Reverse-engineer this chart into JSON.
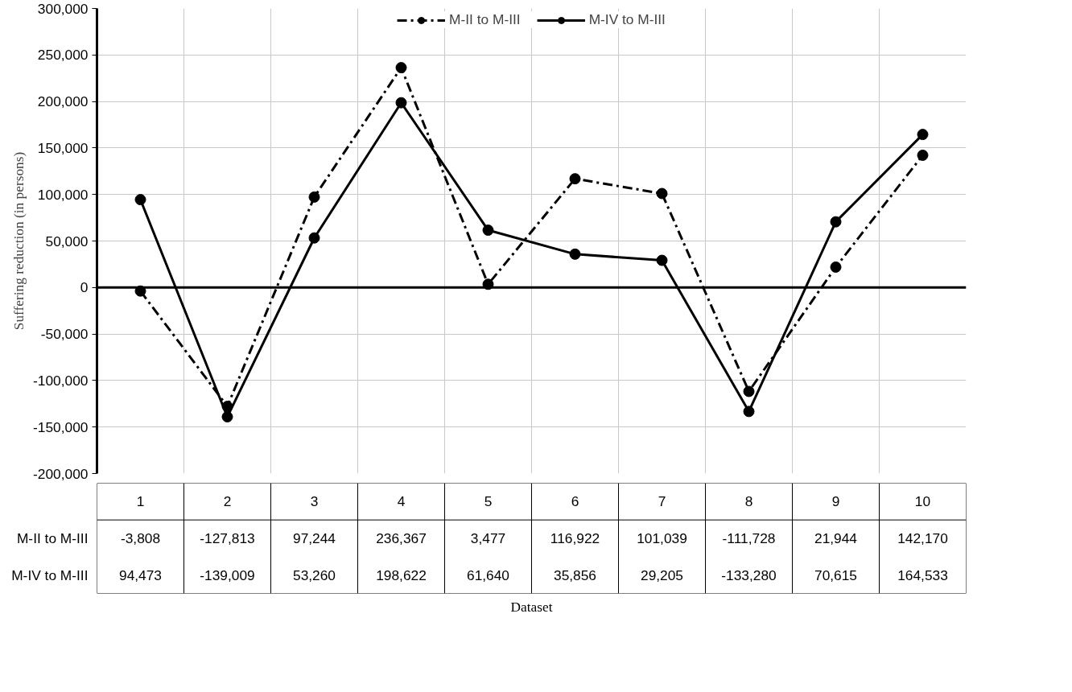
{
  "chart_data": {
    "type": "line",
    "annotations": [
      "Dataset"
    ],
    "ylabel": "Suffering reduction (in persons)",
    "categories": [
      "1",
      "2",
      "3",
      "4",
      "5",
      "6",
      "7",
      "8",
      "9",
      "10"
    ],
    "series": [
      {
        "name": "M-II to M-III",
        "color": "#000000",
        "line_style": "dashed",
        "values": [
          -3808,
          -127813,
          97244,
          236367,
          3477,
          116922,
          101039,
          -111728,
          21944,
          142170
        ],
        "value_labels": [
          "-3,808",
          "-127,813",
          "97,244",
          "236,367",
          "3,477",
          "116,922",
          "101,039",
          "-111,728",
          "21,944",
          "142,170"
        ]
      },
      {
        "name": "M-IV to M-III",
        "color": "#000000",
        "line_style": "solid",
        "values": [
          94473,
          -139009,
          53260,
          198622,
          61640,
          35856,
          29205,
          -133280,
          70615,
          164533
        ],
        "value_labels": [
          "94,473",
          "-139,009",
          "53,260",
          "198,622",
          "61,640",
          "35,856",
          "29,205",
          "-133,280",
          "70,615",
          "164,533"
        ]
      }
    ],
    "marker": "circle",
    "ylim": [
      -200000,
      300000
    ],
    "yticks": [
      {
        "value": -200000,
        "label": "-200,000"
      },
      {
        "value": -150000,
        "label": "-150,000"
      },
      {
        "value": -100000,
        "label": "-100,000"
      },
      {
        "value": -50000,
        "label": "-50,000"
      },
      0,
      {
        "value": 50000,
        "label": "50,000"
      },
      {
        "value": 100000,
        "label": "100,000"
      },
      {
        "value": 150000,
        "label": "150,000"
      },
      {
        "value": 200000,
        "label": "200,000"
      },
      {
        "value": 250000,
        "label": "250,000"
      },
      {
        "value": 300000,
        "label": "300,000"
      }
    ],
    "grid": true,
    "legend": "top",
    "ref_lines": [
      {
        "axis": "y",
        "value": 0,
        "color": "#000000"
      }
    ]
  }
}
